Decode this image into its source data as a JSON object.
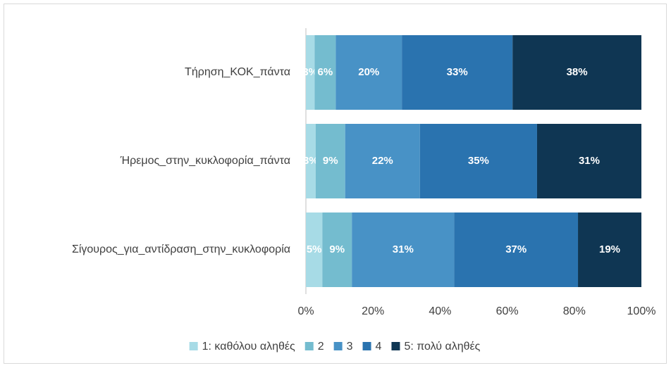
{
  "chart_data": {
    "type": "stacked_barh",
    "categories": [
      "Τήρηση_ΚΟΚ_πάντα",
      "Ήρεμος_στην_κυκλοφορία_πάντα",
      "Σίγουρος_για_αντίδραση_στην_κυκλοφορία"
    ],
    "series": [
      {
        "name": "1: καθόλου αληθές",
        "color": "#a7dbe6",
        "values": [
          2.6,
          2.9,
          4.9
        ],
        "value_labels": [
          "3%",
          "3%",
          "5%"
        ]
      },
      {
        "name": "2",
        "color": "#74bccf",
        "values": [
          6.3,
          8.8,
          8.8
        ],
        "value_labels": [
          "6%",
          "9%",
          "9%"
        ]
      },
      {
        "name": "3",
        "color": "#4892c6",
        "values": [
          19.7,
          22.3,
          30.5
        ],
        "value_labels": [
          "20%",
          "22%",
          "31%"
        ]
      },
      {
        "name": "4",
        "color": "#2a73af",
        "values": [
          33.0,
          34.9,
          36.9
        ],
        "value_labels": [
          "33%",
          "35%",
          "37%"
        ]
      },
      {
        "name": "5: πολύ αληθές",
        "color": "#0f3653",
        "values": [
          38.4,
          31.1,
          18.9
        ],
        "value_labels": [
          "38%",
          "31%",
          "19%"
        ]
      }
    ],
    "xlim": [
      0,
      100
    ],
    "xticks": [
      {
        "value": 0,
        "label": "0%"
      },
      {
        "value": 20,
        "label": "20%"
      },
      {
        "value": 40,
        "label": "40%"
      },
      {
        "value": 60,
        "label": "60%"
      },
      {
        "value": 80,
        "label": "80%"
      },
      {
        "value": 100,
        "label": "100%"
      }
    ],
    "grid": false,
    "legend": "bottom"
  }
}
